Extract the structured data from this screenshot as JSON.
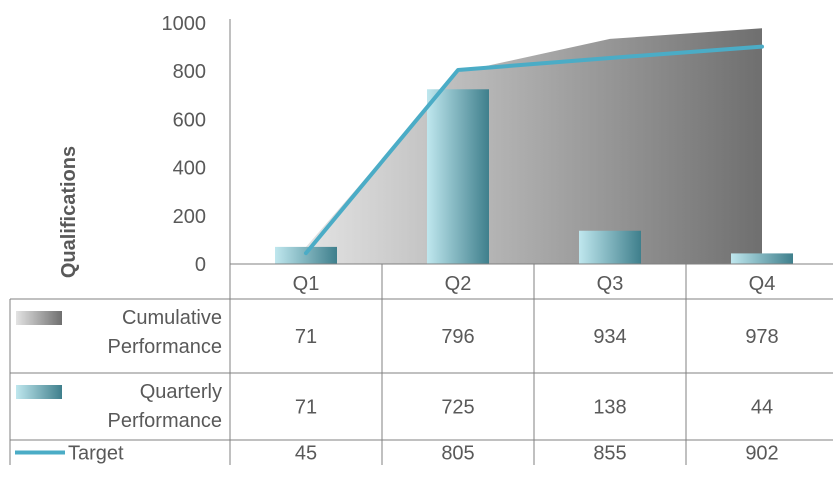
{
  "chart_data": {
    "type": "bar",
    "ylabel": "Qualifications",
    "ylim": [
      0,
      1000
    ],
    "yticks": [
      "0",
      "200",
      "400",
      "600",
      "800",
      "1000"
    ],
    "categories": [
      "Q1",
      "Q2",
      "Q3",
      "Q4"
    ],
    "series": [
      {
        "name": "Cumulative Performance",
        "name_lines": [
          "Cumulative",
          "Performance"
        ],
        "type": "area",
        "values": [
          71,
          796,
          934,
          978
        ],
        "labels": [
          "71",
          "796",
          "934",
          "978"
        ],
        "color_start": "#e3e3e3",
        "color_end": "#6f6f6f"
      },
      {
        "name": "Quarterly Performance",
        "name_lines": [
          "Quarterly",
          "Performance"
        ],
        "type": "bar",
        "values": [
          71,
          725,
          138,
          44
        ],
        "labels": [
          "71",
          "725",
          "138",
          "44"
        ],
        "color_start": "#bfe7ee",
        "color_end": "#3f7f8c"
      },
      {
        "name": "Target",
        "name_lines": [
          "Target"
        ],
        "type": "line",
        "values": [
          45,
          805,
          855,
          902
        ],
        "labels": [
          "45",
          "805",
          "855",
          "902"
        ],
        "color": "#4bacc6"
      }
    ],
    "grid": false,
    "legend": "data-table"
  }
}
